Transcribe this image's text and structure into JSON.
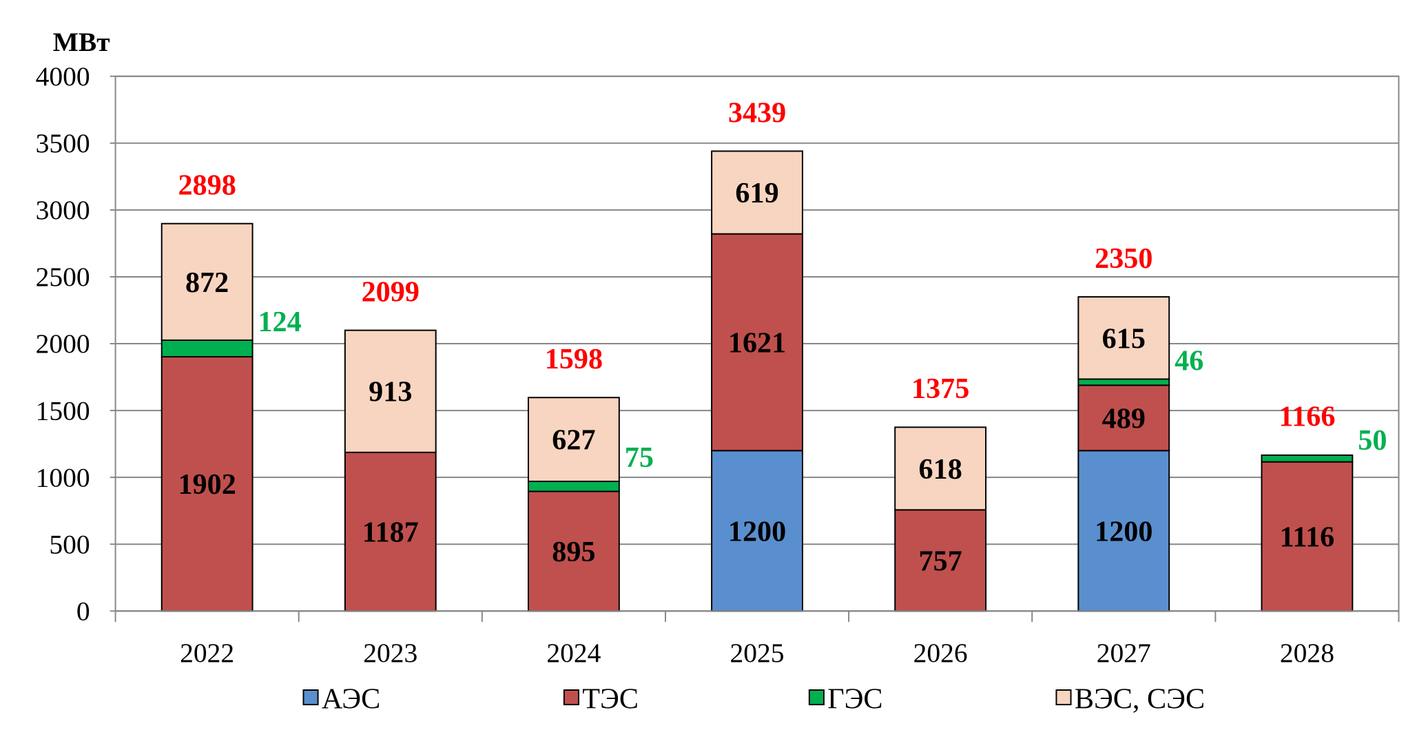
{
  "chart_data": {
    "type": "bar",
    "stacked": true,
    "ylabel": "МВт",
    "xlabel": "",
    "ylim": [
      0,
      4000
    ],
    "yticks": [
      0,
      500,
      1000,
      1500,
      2000,
      2500,
      3000,
      3500,
      4000
    ],
    "grid": true,
    "legend_position": "bottom",
    "categories": [
      "2022",
      "2023",
      "2024",
      "2025",
      "2026",
      "2027",
      "2028"
    ],
    "series": [
      {
        "name": "АЭС",
        "color": "#5a8fcf",
        "values": [
          0,
          0,
          0,
          1200,
          0,
          1200,
          0
        ]
      },
      {
        "name": "ТЭС",
        "color": "#c0504d",
        "values": [
          1902,
          1187,
          895,
          1621,
          757,
          489,
          1116
        ]
      },
      {
        "name": "ГЭС",
        "color": "#00b050",
        "values": [
          124,
          0,
          75,
          0,
          0,
          46,
          50
        ]
      },
      {
        "name": "ВЭС, СЭС",
        "color": "#f8d5c0",
        "values": [
          872,
          913,
          627,
          619,
          618,
          615,
          0
        ]
      }
    ],
    "totals": [
      2898,
      2099,
      1598,
      3439,
      1375,
      2350,
      1166
    ],
    "total_label_color": "#ff0000",
    "hydro_label_color": "#00b050"
  }
}
